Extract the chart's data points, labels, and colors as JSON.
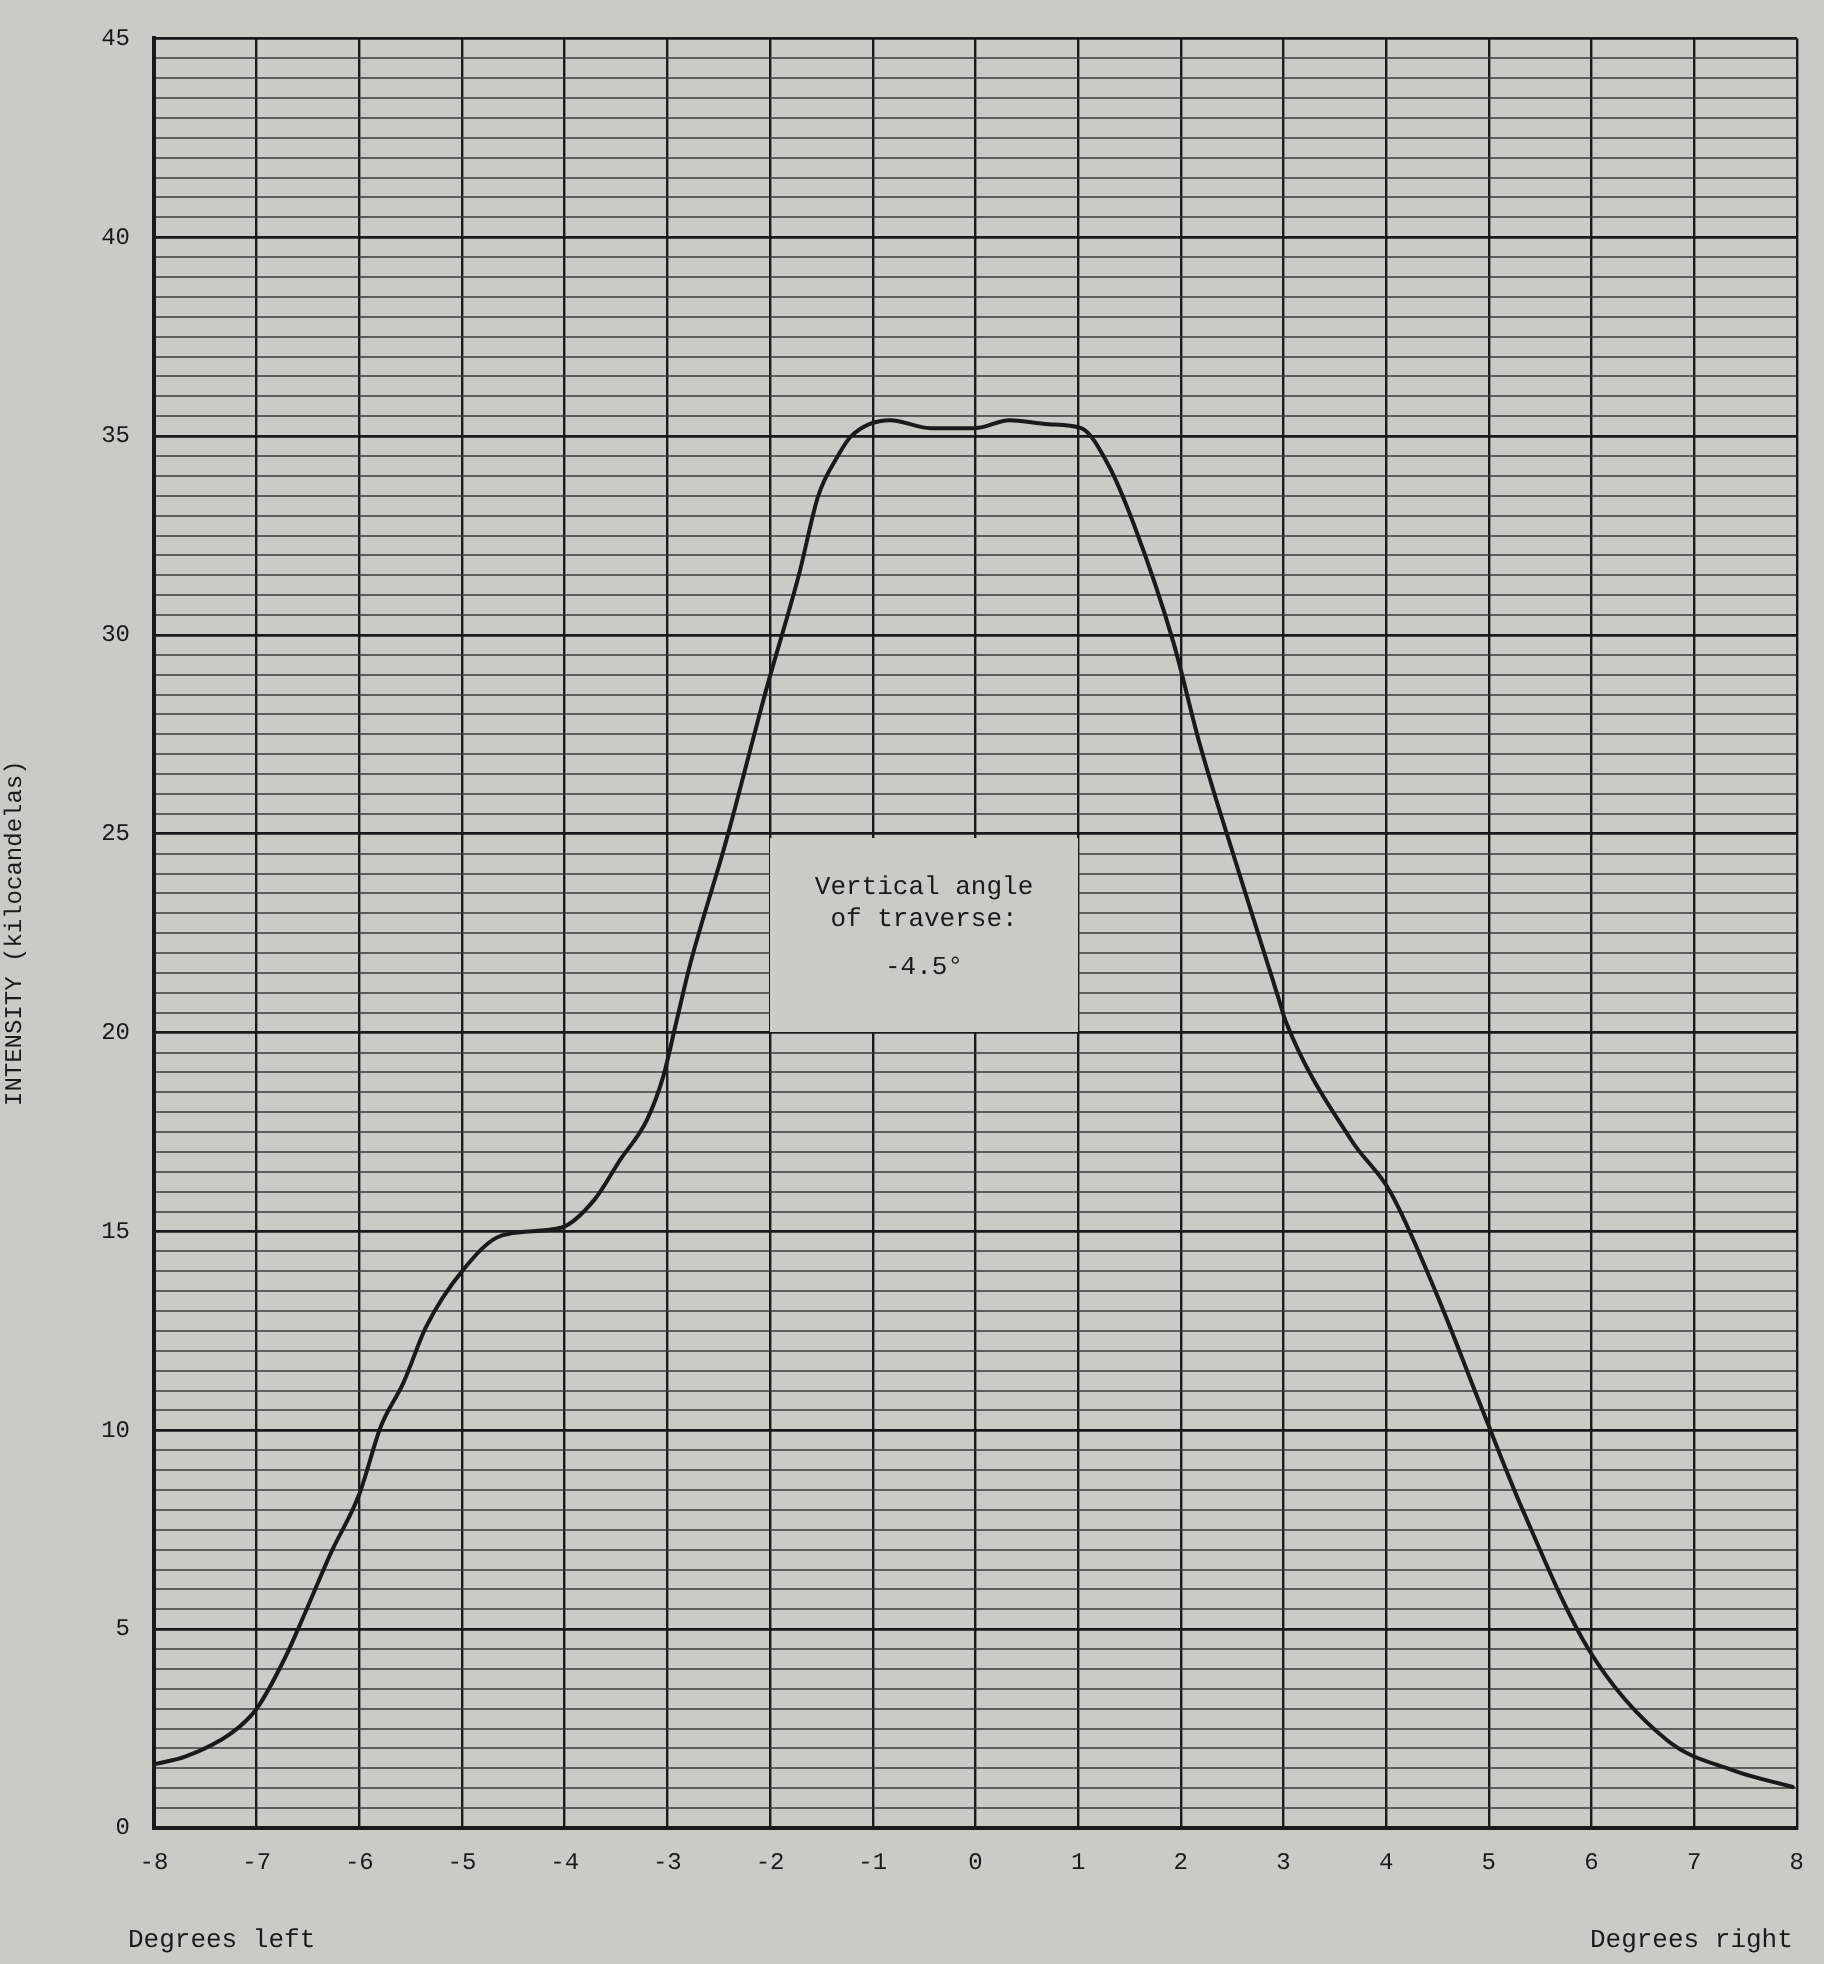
{
  "chart_data": {
    "type": "line",
    "ylabel": "INTENSITY (kilocandelas)",
    "annotations": [
      "Vertical angle\nof traverse:\n-4.5°",
      "Degrees left",
      "Degrees right"
    ],
    "series": [
      {
        "color": "#1a1a1a",
        "x": [
          -8,
          -7.69,
          -7.24,
          -7.0,
          -6.72,
          -6.53,
          -6.28,
          -6.0,
          -5.79,
          -5.57,
          -5.35,
          -5.0,
          -4.61,
          -4.03,
          -3.71,
          -3.46,
          -3.2,
          -3.04,
          -2.91,
          -2.78,
          -2.43,
          -2.04,
          -1.72,
          -1.53,
          -1.34,
          -1.21,
          -0.83,
          -0.44,
          0,
          0.33,
          0.71,
          1.03,
          1.29,
          1.54,
          1.93,
          2.18,
          2.57,
          2.96,
          3.02,
          3.66,
          4.04,
          4.48,
          4.94,
          5.33,
          5.97,
          6.74,
          7.38,
          7.96
        ],
        "values": [
          1.6,
          1.8,
          2.4,
          3.0,
          4.3,
          5.4,
          6.9,
          8.4,
          10.1,
          11.2,
          12.6,
          14.0,
          14.9,
          15.1,
          15.8,
          16.8,
          17.8,
          18.9,
          20.3,
          21.7,
          24.8,
          28.6,
          31.5,
          33.5,
          34.5,
          35.0,
          35.4,
          35.2,
          35.2,
          35.4,
          35.3,
          35.2,
          34.3,
          32.8,
          29.8,
          27.3,
          24.0,
          20.8,
          20.3,
          17.3,
          16.0,
          13.5,
          10.5,
          8.0,
          4.5,
          2.2,
          1.45,
          1.03
        ]
      }
    ],
    "xlim": [
      -8,
      8
    ],
    "xticks": [
      -8,
      -7,
      -6,
      -5,
      -4,
      -3,
      -2,
      -1,
      0,
      1,
      2,
      3,
      4,
      5,
      6,
      7,
      8
    ],
    "ylim": [
      0,
      45
    ],
    "yticks": [
      0,
      {
        "value": 0.5,
        "label": null
      },
      {
        "value": 1,
        "label": null
      },
      {
        "value": 1.5,
        "label": null
      },
      {
        "value": 2,
        "label": null
      },
      {
        "value": 2.5,
        "label": null
      },
      {
        "value": 3,
        "label": null
      },
      {
        "value": 3.5,
        "label": null
      },
      {
        "value": 4,
        "label": null
      },
      {
        "value": 4.5,
        "label": null
      },
      5,
      {
        "value": 5.5,
        "label": null
      },
      {
        "value": 6,
        "label": null
      },
      {
        "value": 6.5,
        "label": null
      },
      {
        "value": 7,
        "label": null
      },
      {
        "value": 7.5,
        "label": null
      },
      {
        "value": 8,
        "label": null
      },
      {
        "value": 8.5,
        "label": null
      },
      {
        "value": 9,
        "label": null
      },
      {
        "value": 9.5,
        "label": null
      },
      10,
      {
        "value": 10.5,
        "label": null
      },
      {
        "value": 11,
        "label": null
      },
      {
        "value": 11.5,
        "label": null
      },
      {
        "value": 12,
        "label": null
      },
      {
        "value": 12.5,
        "label": null
      },
      {
        "value": 13,
        "label": null
      },
      {
        "value": 13.5,
        "label": null
      },
      {
        "value": 14,
        "label": null
      },
      {
        "value": 14.5,
        "label": null
      },
      15,
      {
        "value": 15.5,
        "label": null
      },
      {
        "value": 16,
        "label": null
      },
      {
        "value": 16.5,
        "label": null
      },
      {
        "value": 17,
        "label": null
      },
      {
        "value": 17.5,
        "label": null
      },
      {
        "value": 18,
        "label": null
      },
      {
        "value": 18.5,
        "label": null
      },
      {
        "value": 19,
        "label": null
      },
      {
        "value": 19.5,
        "label": null
      },
      20,
      {
        "value": 20.5,
        "label": null
      },
      {
        "value": 21,
        "label": null
      },
      {
        "value": 21.5,
        "label": null
      },
      {
        "value": 22,
        "label": null
      },
      {
        "value": 22.5,
        "label": null
      },
      {
        "value": 23,
        "label": null
      },
      {
        "value": 23.5,
        "label": null
      },
      {
        "value": 24,
        "label": null
      },
      {
        "value": 24.5,
        "label": null
      },
      25,
      {
        "value": 25.5,
        "label": null
      },
      {
        "value": 26,
        "label": null
      },
      {
        "value": 26.5,
        "label": null
      },
      {
        "value": 27,
        "label": null
      },
      {
        "value": 27.5,
        "label": null
      },
      {
        "value": 28,
        "label": null
      },
      {
        "value": 28.5,
        "label": null
      },
      {
        "value": 29,
        "label": null
      },
      {
        "value": 29.5,
        "label": null
      },
      30,
      {
        "value": 30.5,
        "label": null
      },
      {
        "value": 31,
        "label": null
      },
      {
        "value": 31.5,
        "label": null
      },
      {
        "value": 32,
        "label": null
      },
      {
        "value": 32.5,
        "label": null
      },
      {
        "value": 33,
        "label": null
      },
      {
        "value": 33.5,
        "label": null
      },
      {
        "value": 34,
        "label": null
      },
      {
        "value": 34.5,
        "label": null
      },
      35,
      {
        "value": 35.5,
        "label": null
      },
      {
        "value": 36,
        "label": null
      },
      {
        "value": 36.5,
        "label": null
      },
      {
        "value": 37,
        "label": null
      },
      {
        "value": 37.5,
        "label": null
      },
      {
        "value": 38,
        "label": null
      },
      {
        "value": 38.5,
        "label": null
      },
      {
        "value": 39,
        "label": null
      },
      {
        "value": 39.5,
        "label": null
      },
      40,
      {
        "value": 40.5,
        "label": null
      },
      {
        "value": 41,
        "label": null
      },
      {
        "value": 41.5,
        "label": null
      },
      {
        "value": 42,
        "label": null
      },
      {
        "value": 42.5,
        "label": null
      },
      {
        "value": 43,
        "label": null
      },
      {
        "value": 43.5,
        "label": null
      },
      {
        "value": 44,
        "label": null
      },
      {
        "value": 44.5,
        "label": null
      },
      45
    ],
    "grid": true,
    "marker": "none",
    "line_style": "solid",
    "legend": false
  }
}
